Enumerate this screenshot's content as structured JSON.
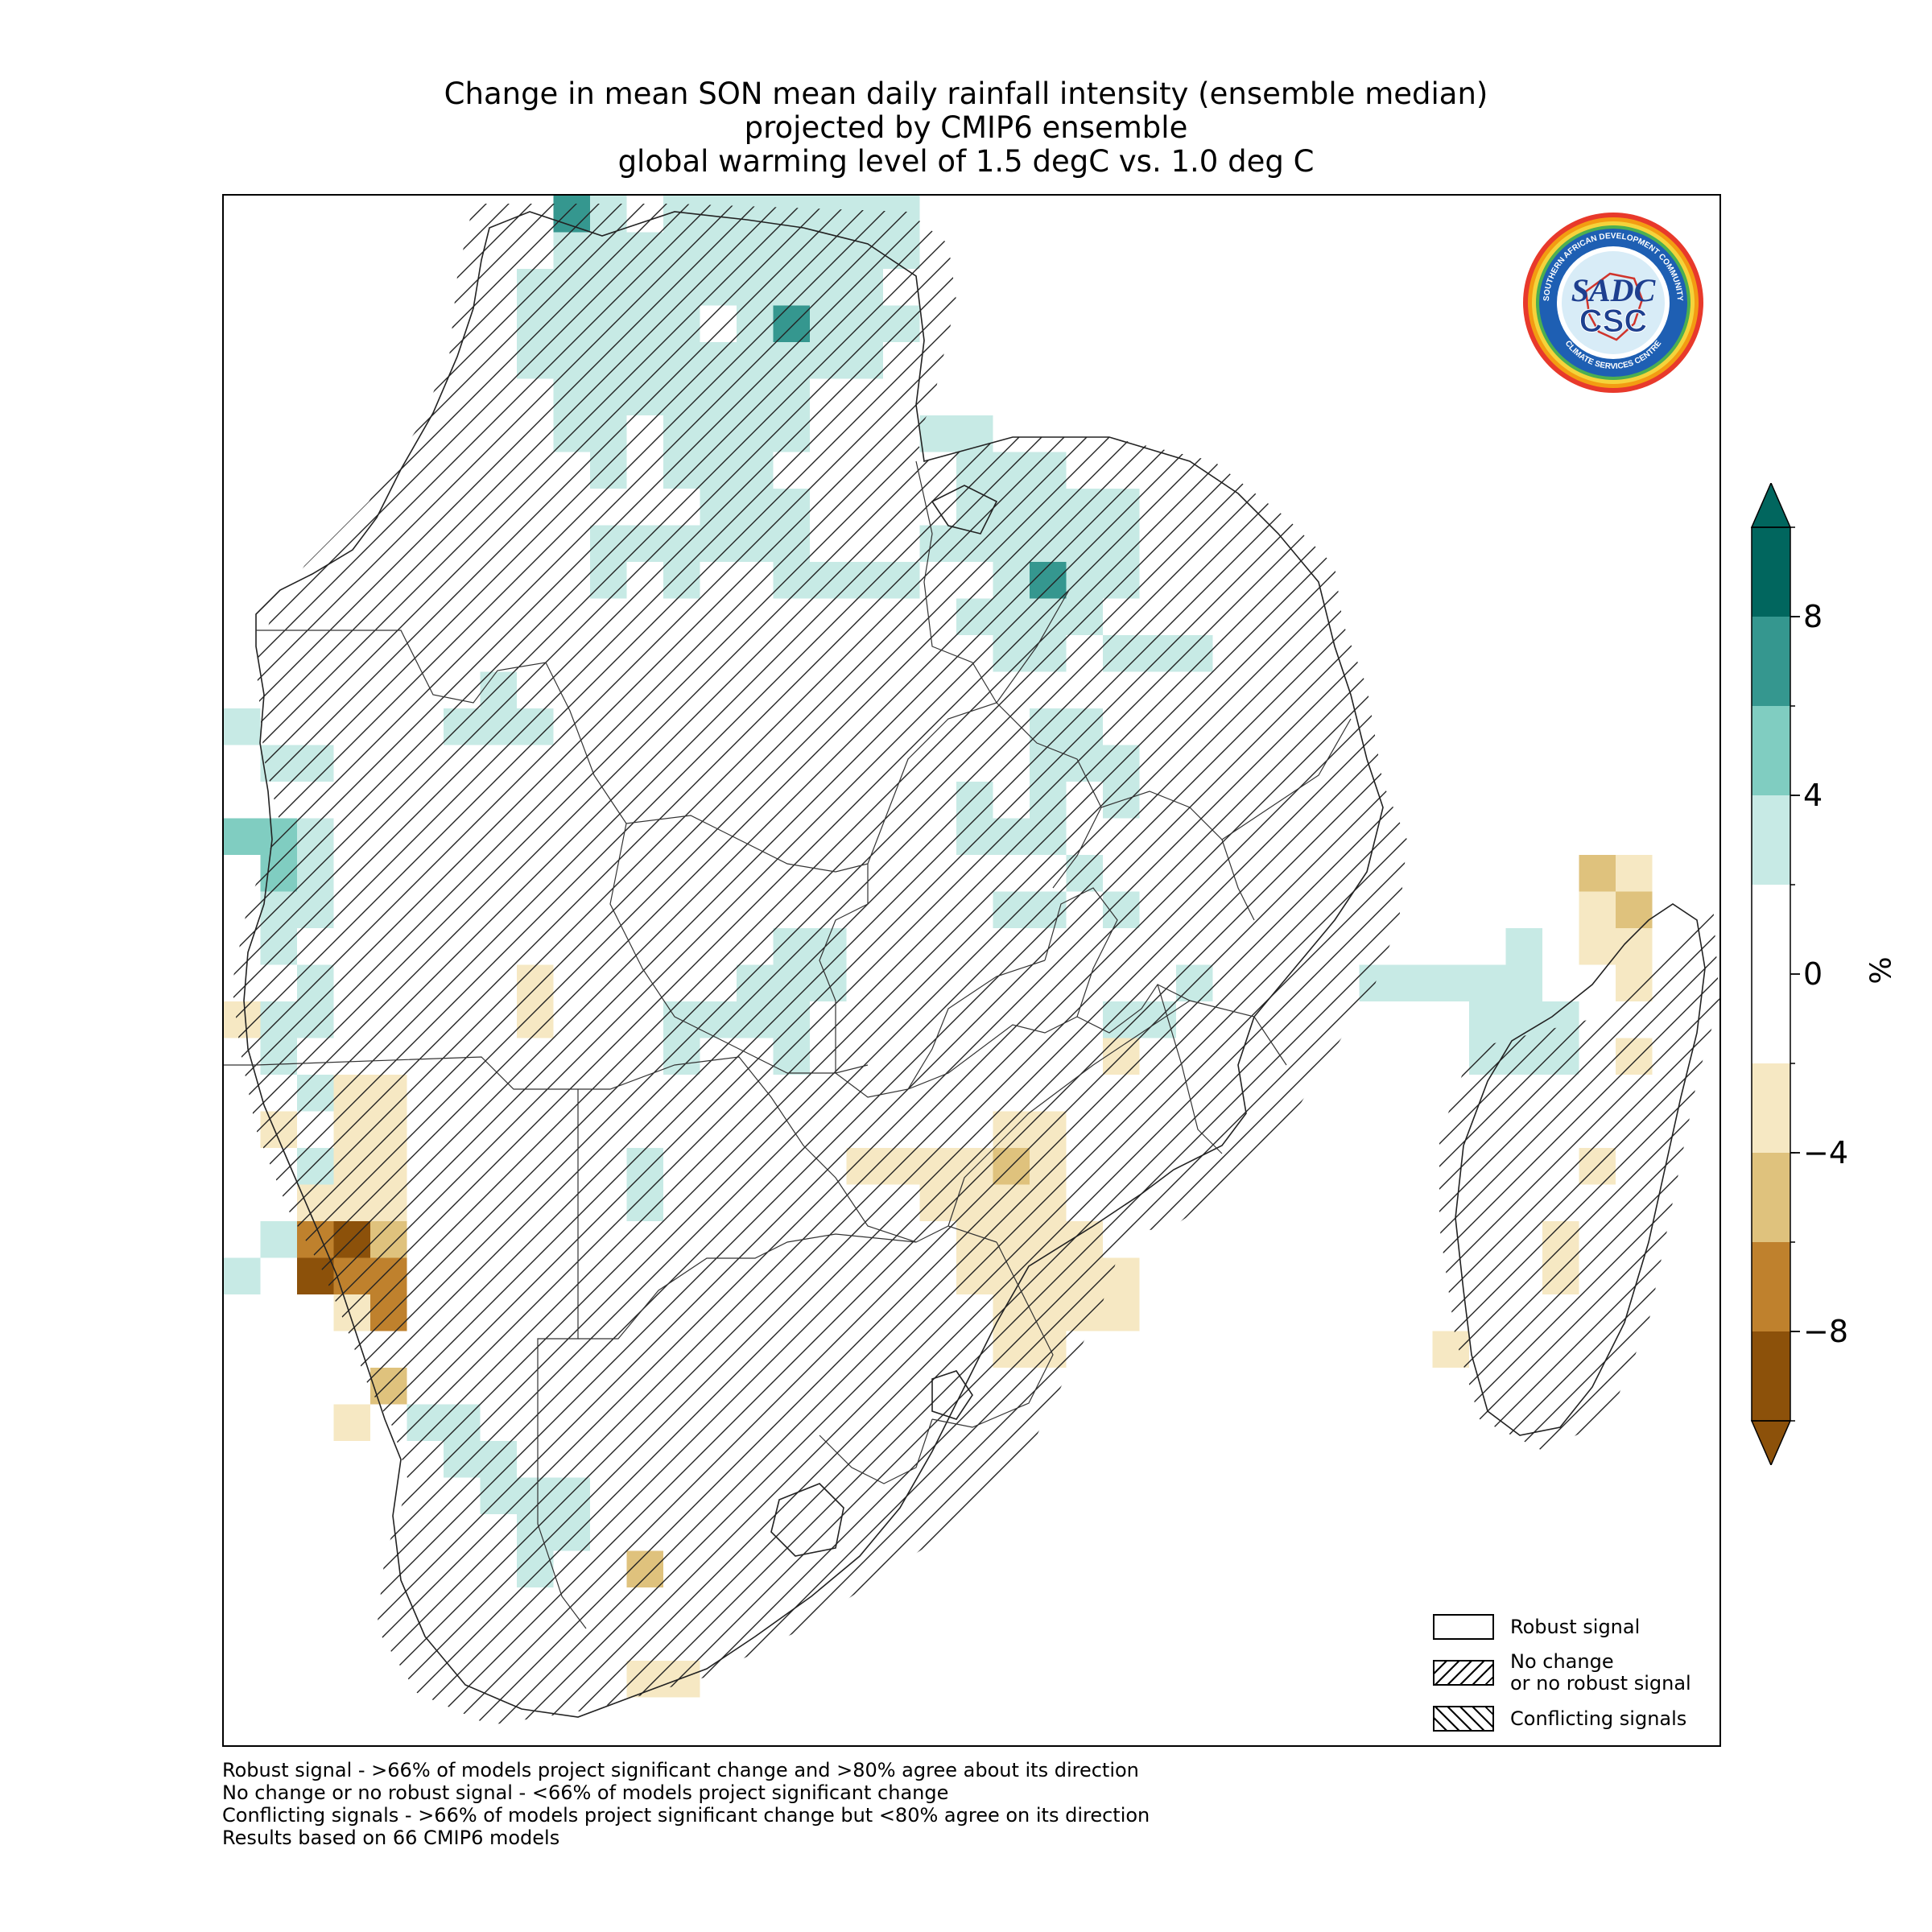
{
  "title": {
    "line1": "Change in mean SON mean daily rainfall intensity (ensemble median)",
    "line2": "projected by CMIP6 ensemble",
    "line3": "global warming level of 1.5 degC vs. 1.0 deg C"
  },
  "logo": {
    "top_text": "SOUTHERN AFRICAN DEVELOPMENT COMMUNITY",
    "bottom_text": "CLIMATE SERVICES CENTRE",
    "monogram": "SADC",
    "abbr": "CSC"
  },
  "legend": {
    "robust": "Robust signal",
    "no_change_line1": "No change",
    "no_change_line2": "or no robust signal",
    "conflicting": "Conflicting signals"
  },
  "colorbar": {
    "unit": "%",
    "ticks": [
      "8",
      "4",
      "0",
      "−4",
      "−8"
    ],
    "tick_values": [
      8,
      4,
      0,
      -4,
      -8
    ],
    "range": [
      -10,
      10
    ],
    "colors": [
      "#8c510a",
      "#bf812d",
      "#dfc27d",
      "#f6e8c3",
      "#ffffff",
      "#c7eae5",
      "#80cdc1",
      "#35978f",
      "#01665e"
    ],
    "bounds": [
      -10,
      -8,
      -6,
      -4,
      -2,
      2,
      4,
      6,
      8,
      10
    ]
  },
  "notes": [
    "Robust signal - >66% of models project significant change and >80% agree about its direction",
    "No change or no robust signal - <66% of models project significant change",
    "Conflicting signals - >66% of models project significant change but <80% agree on its direction",
    "Results based on 66 CMIP6 models"
  ],
  "map_colors": {
    "teal_light": "#c7eae5",
    "teal_mid": "#80cdc1",
    "teal_dark": "#35978f",
    "tan_light": "#f6e8c3",
    "tan_mid": "#dfc27d",
    "brown_mid": "#bf812d",
    "brown_dark": "#8c510a"
  }
}
